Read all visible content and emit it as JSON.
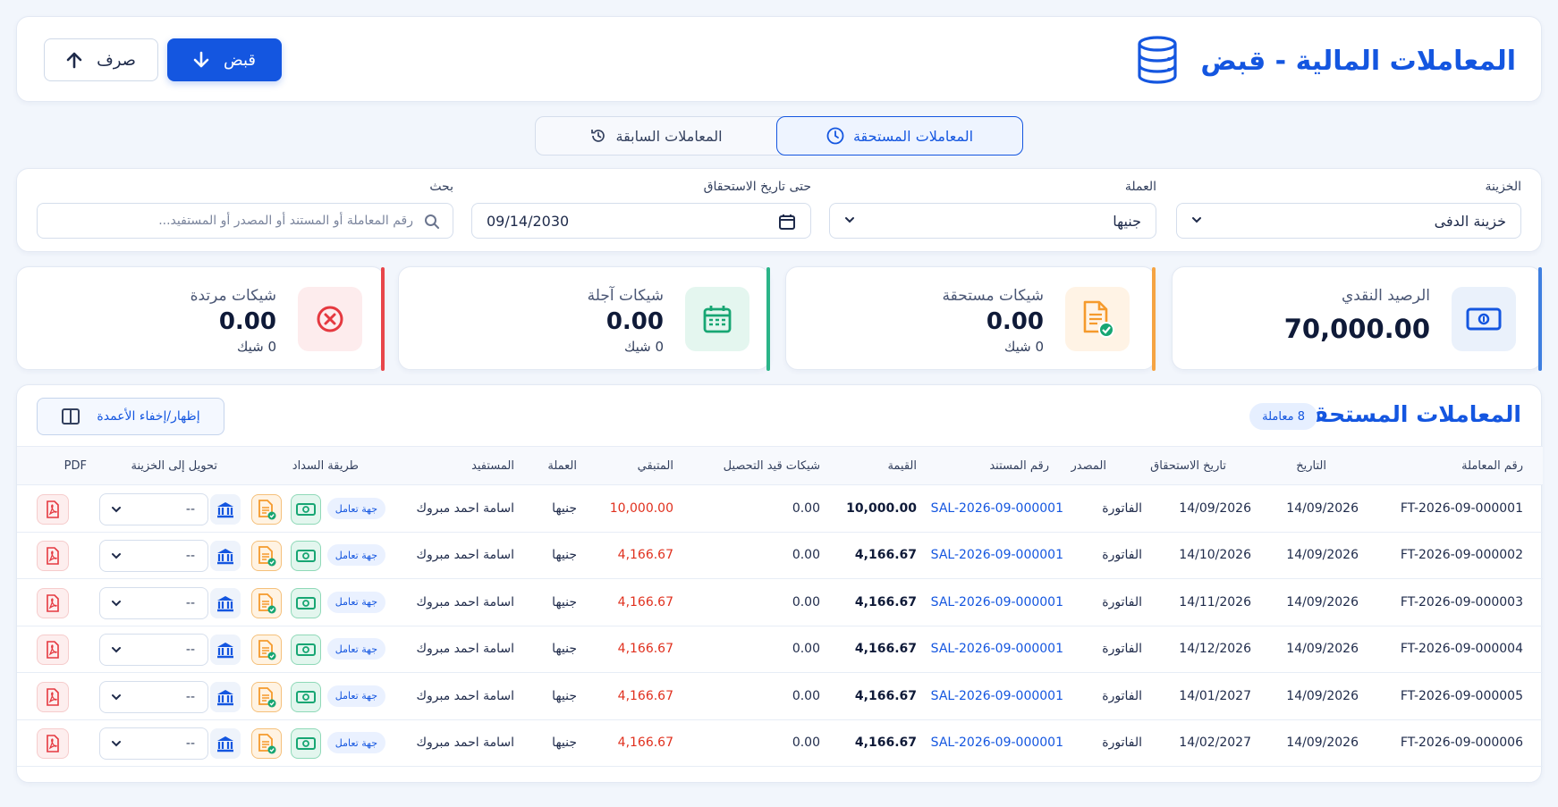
{
  "header": {
    "title": "المعاملات المالية - قبض",
    "receive_label": "قبض",
    "pay_label": "صرف"
  },
  "tabs": {
    "due_label": "المعاملات المستحقة",
    "previous_label": "المعاملات السابقة"
  },
  "filters": {
    "treasury_label": "الخزينة",
    "treasury_value": "خزينة الدفى",
    "currency_label": "العملة",
    "currency_value": "جنيها",
    "due_date_label": "حتى تاريخ الاستحقاق",
    "due_date_value": "09/14/2030",
    "search_label": "بحث",
    "search_placeholder": "رقم المعاملة أو المستند أو المصدر أو المستفيد..."
  },
  "stats": {
    "cash": {
      "title": "الرصيد النقدي",
      "value": "70,000.00",
      "color": "#3f7fe0"
    },
    "due_checks": {
      "title": "شيكات مستحقة",
      "value": "0.00",
      "sub": "0 شيك",
      "color": "#f5a443"
    },
    "future_checks": {
      "title": "شيكات آجلة",
      "value": "0.00",
      "sub": "0 شيك",
      "color": "#2bb488"
    },
    "returned_checks": {
      "title": "شيكات مرتدة",
      "value": "0.00",
      "sub": "0 شيك",
      "color": "#e8464a"
    }
  },
  "table": {
    "title": "المعاملات المستحقة",
    "count_badge": "8 معاملة",
    "columns_button": "إظهار/إخفاء الأعمدة",
    "headers": {
      "id": "رقم المعاملة",
      "date": "التاريخ",
      "due_date": "تاريخ الاستحقاق",
      "source": "المصدر",
      "doc": "رقم المستند",
      "amount": "القيمة",
      "pending_checks": "شيكات قيد التحصيل",
      "remaining": "المتبقي",
      "currency": "العملة",
      "beneficiary": "المستفيد",
      "payment_method": "طريقة السداد",
      "transfer": "تحويل إلى الخزينة",
      "pdf": "PDF"
    },
    "rows": [
      {
        "id": "FT-2026-09-000001",
        "date": "14/09/2026",
        "due": "14/09/2026",
        "source": "الفاتورة",
        "doc": "SAL-2026-09-000001",
        "amount": "10,000.00",
        "pending": "0.00",
        "remaining": "10,000.00",
        "currency": "جنيها",
        "beneficiary": "اسامة احمد مبروك",
        "tag": "جهة تعامل",
        "transfer": "--"
      },
      {
        "id": "FT-2026-09-000002",
        "date": "14/09/2026",
        "due": "14/10/2026",
        "source": "الفاتورة",
        "doc": "SAL-2026-09-000001",
        "amount": "4,166.67",
        "pending": "0.00",
        "remaining": "4,166.67",
        "currency": "جنيها",
        "beneficiary": "اسامة احمد مبروك",
        "tag": "جهة تعامل",
        "transfer": "--"
      },
      {
        "id": "FT-2026-09-000003",
        "date": "14/09/2026",
        "due": "14/11/2026",
        "source": "الفاتورة",
        "doc": "SAL-2026-09-000001",
        "amount": "4,166.67",
        "pending": "0.00",
        "remaining": "4,166.67",
        "currency": "جنيها",
        "beneficiary": "اسامة احمد مبروك",
        "tag": "جهة تعامل",
        "transfer": "--"
      },
      {
        "id": "FT-2026-09-000004",
        "date": "14/09/2026",
        "due": "14/12/2026",
        "source": "الفاتورة",
        "doc": "SAL-2026-09-000001",
        "amount": "4,166.67",
        "pending": "0.00",
        "remaining": "4,166.67",
        "currency": "جنيها",
        "beneficiary": "اسامة احمد مبروك",
        "tag": "جهة تعامل",
        "transfer": "--"
      },
      {
        "id": "FT-2026-09-000005",
        "date": "14/09/2026",
        "due": "14/01/2027",
        "source": "الفاتورة",
        "doc": "SAL-2026-09-000001",
        "amount": "4,166.67",
        "pending": "0.00",
        "remaining": "4,166.67",
        "currency": "جنيها",
        "beneficiary": "اسامة احمد مبروك",
        "tag": "جهة تعامل",
        "transfer": "--"
      },
      {
        "id": "FT-2026-09-000006",
        "date": "14/09/2026",
        "due": "14/02/2027",
        "source": "الفاتورة",
        "doc": "SAL-2026-09-000001",
        "amount": "4,166.67",
        "pending": "0.00",
        "remaining": "4,166.67",
        "currency": "جنيها",
        "beneficiary": "اسامة احمد مبروك",
        "tag": "جهة تعامل",
        "transfer": "--"
      }
    ]
  }
}
